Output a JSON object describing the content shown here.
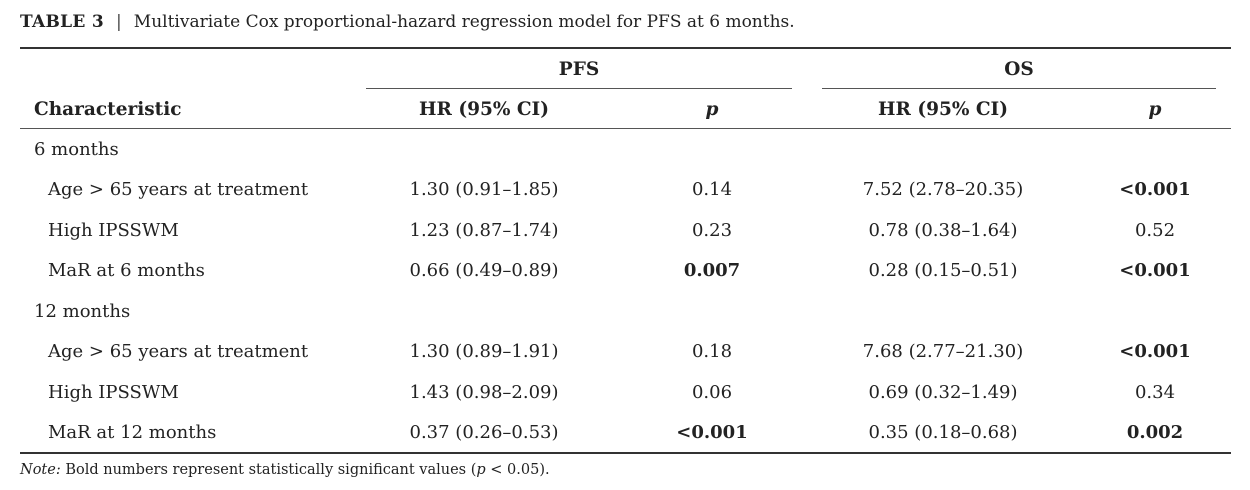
{
  "caption": {
    "label": "TABLE 3",
    "separator": "|",
    "title": "Multivariate Cox proportional-hazard regression model for PFS at 6 months."
  },
  "headers": {
    "group_pfs": "PFS",
    "group_os": "OS",
    "characteristic": "Characteristic",
    "hr_pfs": "HR (95% CI)",
    "p_pfs": "p",
    "hr_os": "HR (95% CI)",
    "p_os": "p"
  },
  "sections": [
    {
      "label": "6 months",
      "rows": [
        {
          "characteristic": "Age > 65 years at treatment",
          "pfs_hr": "1.30 (0.91–1.85)",
          "pfs_p": "0.14",
          "os_hr": "7.52 (2.78–20.35)",
          "os_p": "<0.001"
        },
        {
          "characteristic": "High IPSSWM",
          "pfs_hr": "1.23 (0.87–1.74)",
          "pfs_p": "0.23",
          "os_hr": "0.78 (0.38–1.64)",
          "os_p": "0.52"
        },
        {
          "characteristic": "MaR at 6 months",
          "pfs_hr": "0.66 (0.49–0.89)",
          "pfs_p": "0.007",
          "os_hr": "0.28 (0.15–0.51)",
          "os_p": "<0.001"
        }
      ]
    },
    {
      "label": "12 months",
      "rows": [
        {
          "characteristic": "Age > 65 years at treatment",
          "pfs_hr": "1.30 (0.89–1.91)",
          "pfs_p": "0.18",
          "os_hr": "7.68 (2.77–21.30)",
          "os_p": "<0.001"
        },
        {
          "characteristic": "High IPSSWM",
          "pfs_hr": "1.43 (0.98–2.09)",
          "pfs_p": "0.06",
          "os_hr": "0.69 (0.32–1.49)",
          "os_p": "0.34"
        },
        {
          "characteristic": "MaR at 12 months",
          "pfs_hr": "0.37 (0.26–0.53)",
          "pfs_p": "<0.001",
          "os_hr": "0.35 (0.18–0.68)",
          "os_p": "0.002"
        }
      ]
    }
  ],
  "note": {
    "label": "Note:",
    "text_before": " Bold numbers represent statistically significant values (",
    "p_symbol": "p",
    "text_after": " < 0.05)."
  }
}
